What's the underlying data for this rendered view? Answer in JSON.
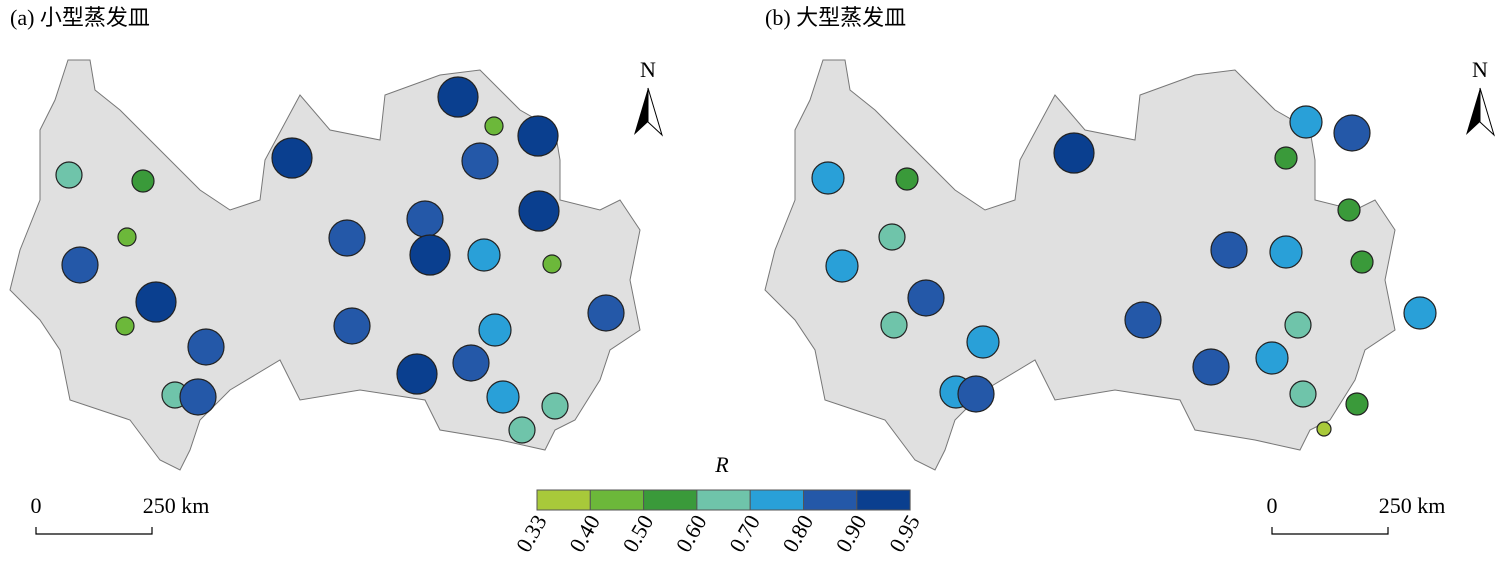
{
  "panels": [
    {
      "title": "(a) 小型蒸发皿",
      "north": "N",
      "scale_bar": {
        "start": "0",
        "end": "250 km"
      },
      "values": [
        0.93,
        0.45,
        0.93,
        0.93,
        0.85,
        0.62,
        0.55,
        0.93,
        0.85,
        0.45,
        0.85,
        0.93,
        0.75,
        0.45,
        0.85,
        0.93,
        0.85,
        0.45,
        0.85,
        0.75,
        0.85,
        0.85,
        0.93,
        0.65,
        0.85,
        0.75,
        0.65,
        0.62
      ]
    },
    {
      "title": "(b) 大型蒸发皿",
      "north": "N",
      "scale_bar": {
        "start": "0",
        "end": "250 km"
      },
      "values": [
        0.85,
        0.75,
        0.93,
        0.75,
        0.55,
        0.55,
        0.55,
        0.65,
        0.85,
        0.75,
        0.75,
        0.55,
        0.85,
        0.75,
        0.65,
        0.85,
        0.65,
        0.75,
        0.75,
        0.85,
        0.75,
        0.85,
        0.65,
        0.55,
        0.36
      ]
    }
  ],
  "legend": {
    "title": "R",
    "breaks": [
      0.33,
      {
        "value": 0.4,
        "label": "0.40"
      },
      {
        "value": 0.5,
        "label": "0.50"
      },
      {
        "value": 0.6,
        "label": "0.60"
      },
      {
        "value": 0.7,
        "label": "0.70"
      },
      {
        "value": 0.8,
        "label": "0.80"
      },
      {
        "value": 0.9,
        "label": "0.90"
      },
      0.95
    ],
    "colors": [
      "#a8c93a",
      "#6cb83a",
      "#3a9a3a",
      "#6fc4aa",
      "#29a0d8",
      "#2458a8",
      "#0a3f8f"
    ]
  }
}
